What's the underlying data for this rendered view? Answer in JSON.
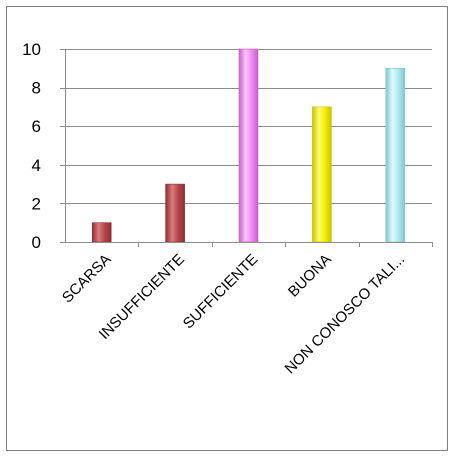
{
  "chart_data": {
    "type": "bar",
    "categories": [
      "SCARSA",
      "INSUFFICIENTE",
      "SUFFICIENTE",
      "BUONA",
      "NON CONOSCO TALI..."
    ],
    "values": [
      1,
      3,
      10,
      7,
      9
    ],
    "ylim": [
      0,
      10
    ],
    "yticks": [
      0,
      2,
      4,
      6,
      8,
      10
    ],
    "grid": true,
    "legend": "none",
    "bar_colors": [
      {
        "fill": "#B5474B",
        "light": "#D97A7E",
        "dark": "#8E2F33"
      },
      {
        "fill": "#B5474B",
        "light": "#D97A7E",
        "dark": "#8E2F33"
      },
      {
        "fill": "#F08BF0",
        "light": "#FCC6FC",
        "dark": "#C661C6"
      },
      {
        "fill": "#F5F000",
        "light": "#FFFB7A",
        "dark": "#C9C400"
      },
      {
        "fill": "#AEE9EE",
        "light": "#E0FAFC",
        "dark": "#7CC8CF"
      }
    ],
    "colors": {
      "grid": "#8C8C8C",
      "axis": "#8C8C8C",
      "frame": "#7F7F7F"
    }
  }
}
